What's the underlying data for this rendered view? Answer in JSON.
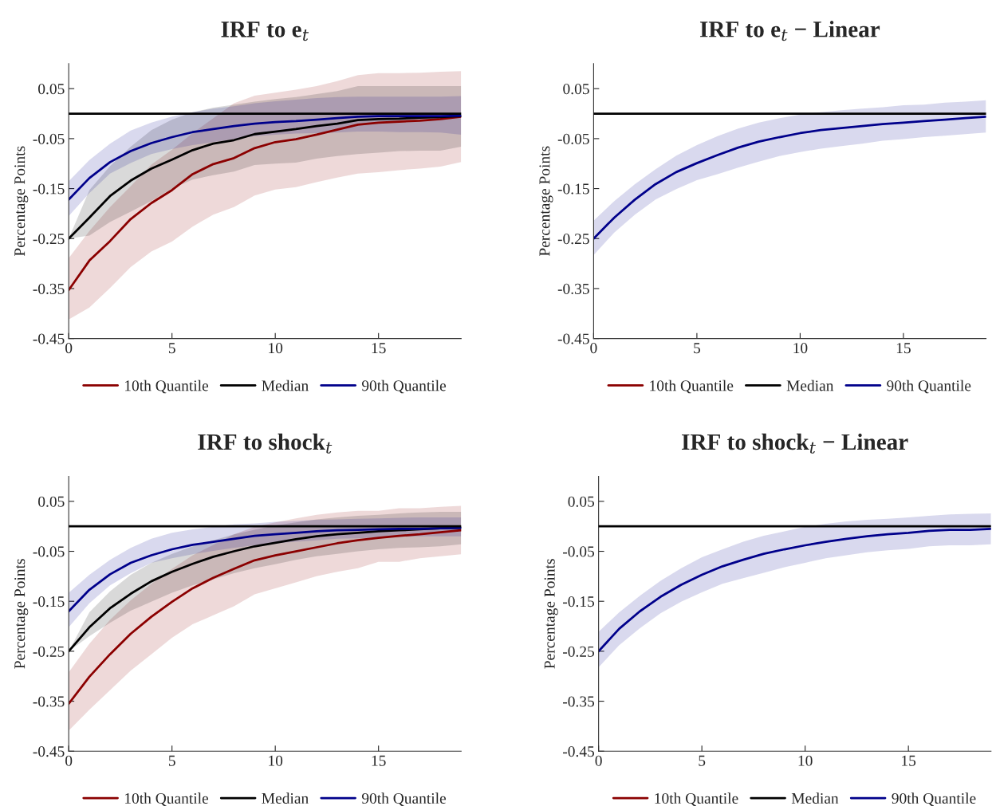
{
  "chart_data": [
    {
      "type": "line",
      "title": "IRF to e$_{t}$",
      "ylabel": "Percentage Points",
      "x": [
        0,
        1,
        2,
        3,
        4,
        5,
        6,
        7,
        8,
        9,
        10,
        11,
        12,
        13,
        14,
        15,
        16,
        17,
        18,
        19
      ],
      "xlim": [
        0,
        19
      ],
      "xticks": [
        0,
        5,
        10,
        15
      ],
      "ylim": [
        -0.45,
        0.1
      ],
      "yticks": [
        0.05,
        -0.05,
        -0.15,
        -0.25,
        -0.35,
        -0.45
      ],
      "legend": "bottom",
      "grid": false,
      "ref_lines": [
        {
          "axis": "y",
          "value": 0,
          "color": "#000000"
        }
      ],
      "series": [
        {
          "name": "10th Quantile",
          "color": "#8b0000",
          "values": [
            -0.353,
            -0.294,
            -0.255,
            -0.211,
            -0.179,
            -0.153,
            -0.121,
            -0.101,
            -0.089,
            -0.069,
            -0.057,
            -0.051,
            -0.042,
            -0.032,
            -0.022,
            -0.018,
            -0.016,
            -0.014,
            -0.011,
            -0.006
          ],
          "lower": [
            -0.412,
            -0.388,
            -0.349,
            -0.307,
            -0.276,
            -0.256,
            -0.226,
            -0.202,
            -0.187,
            -0.164,
            -0.152,
            -0.147,
            -0.137,
            -0.128,
            -0.12,
            -0.117,
            -0.113,
            -0.11,
            -0.106,
            -0.097
          ],
          "upper": [
            -0.289,
            -0.235,
            -0.187,
            -0.145,
            -0.102,
            -0.072,
            -0.039,
            -0.009,
            0.021,
            0.036,
            0.042,
            0.048,
            0.055,
            0.065,
            0.077,
            0.081,
            0.081,
            0.082,
            0.084,
            0.085
          ]
        },
        {
          "name": "Median",
          "color": "#000000",
          "values": [
            -0.25,
            -0.208,
            -0.165,
            -0.134,
            -0.11,
            -0.092,
            -0.073,
            -0.06,
            -0.053,
            -0.041,
            -0.036,
            -0.031,
            -0.025,
            -0.02,
            -0.013,
            -0.011,
            -0.01,
            -0.008,
            -0.007,
            -0.005
          ],
          "lower": [
            -0.25,
            -0.244,
            -0.217,
            -0.196,
            -0.175,
            -0.15,
            -0.132,
            -0.123,
            -0.116,
            -0.103,
            -0.1,
            -0.098,
            -0.09,
            -0.085,
            -0.081,
            -0.078,
            -0.075,
            -0.074,
            -0.074,
            -0.066
          ],
          "upper": [
            -0.25,
            -0.153,
            -0.105,
            -0.066,
            -0.033,
            -0.012,
            0.003,
            0.012,
            0.018,
            0.024,
            0.029,
            0.033,
            0.039,
            0.045,
            0.055,
            0.055,
            0.055,
            0.055,
            0.055,
            0.055
          ]
        },
        {
          "name": "90th Quantile",
          "color": "#00008b",
          "values": [
            -0.172,
            -0.129,
            -0.097,
            -0.075,
            -0.059,
            -0.047,
            -0.037,
            -0.031,
            -0.025,
            -0.02,
            -0.017,
            -0.015,
            -0.012,
            -0.009,
            -0.006,
            -0.005,
            -0.005,
            -0.005,
            -0.005,
            -0.004
          ],
          "lower": [
            -0.205,
            -0.159,
            -0.12,
            -0.099,
            -0.081,
            -0.071,
            -0.063,
            -0.057,
            -0.051,
            -0.045,
            -0.042,
            -0.04,
            -0.039,
            -0.038,
            -0.036,
            -0.036,
            -0.037,
            -0.037,
            -0.038,
            -0.042
          ],
          "upper": [
            -0.135,
            -0.093,
            -0.06,
            -0.034,
            -0.018,
            -0.006,
            0.003,
            0.01,
            0.015,
            0.021,
            0.025,
            0.028,
            0.031,
            0.033,
            0.034,
            0.034,
            0.034,
            0.034,
            0.034,
            0.035
          ]
        }
      ]
    },
    {
      "type": "line",
      "title": "IRF to e$_{t}$ − Linear",
      "ylabel": "Percentage Points",
      "x": [
        0,
        1,
        2,
        3,
        4,
        5,
        6,
        7,
        8,
        9,
        10,
        11,
        12,
        13,
        14,
        15,
        16,
        17,
        18,
        19
      ],
      "xlim": [
        0,
        19
      ],
      "xticks": [
        0,
        5,
        10,
        15
      ],
      "ylim": [
        -0.45,
        0.1
      ],
      "yticks": [
        0.05,
        -0.05,
        -0.15,
        -0.25,
        -0.35,
        -0.45
      ],
      "legend": "bottom",
      "grid": false,
      "ref_lines": [
        {
          "axis": "y",
          "value": 0,
          "color": "#000000"
        }
      ],
      "series": [
        {
          "name": "10th Quantile",
          "color": "#8b0000",
          "values": [
            null,
            null,
            null,
            null,
            null,
            null,
            null,
            null,
            null,
            null,
            null,
            null,
            null,
            null,
            null,
            null,
            null,
            null,
            null,
            null
          ]
        },
        {
          "name": "Median",
          "color": "#000000",
          "values": [
            null,
            null,
            null,
            null,
            null,
            null,
            null,
            null,
            null,
            null,
            null,
            null,
            null,
            null,
            null,
            null,
            null,
            null,
            null,
            null
          ]
        },
        {
          "name": "90th Quantile",
          "color": "#00008b",
          "values": [
            -0.25,
            -0.208,
            -0.172,
            -0.141,
            -0.117,
            -0.099,
            -0.083,
            -0.068,
            -0.056,
            -0.047,
            -0.039,
            -0.033,
            -0.029,
            -0.025,
            -0.021,
            -0.018,
            -0.015,
            -0.012,
            -0.009,
            -0.006
          ],
          "lower": [
            -0.283,
            -0.238,
            -0.202,
            -0.172,
            -0.151,
            -0.133,
            -0.121,
            -0.108,
            -0.096,
            -0.085,
            -0.077,
            -0.07,
            -0.065,
            -0.06,
            -0.054,
            -0.051,
            -0.047,
            -0.044,
            -0.041,
            -0.038
          ],
          "upper": [
            -0.214,
            -0.175,
            -0.141,
            -0.111,
            -0.084,
            -0.063,
            -0.045,
            -0.03,
            -0.018,
            -0.009,
            -0.002,
            0.003,
            0.007,
            0.01,
            0.013,
            0.017,
            0.018,
            0.022,
            0.024,
            0.027
          ]
        }
      ]
    },
    {
      "type": "line",
      "title": "IRF to shock$_{t}$",
      "ylabel": "Percentage Points",
      "x": [
        0,
        1,
        2,
        3,
        4,
        5,
        6,
        7,
        8,
        9,
        10,
        11,
        12,
        13,
        14,
        15,
        16,
        17,
        18,
        19
      ],
      "xlim": [
        0,
        19
      ],
      "xticks": [
        0,
        5,
        10,
        15
      ],
      "ylim": [
        -0.45,
        0.1
      ],
      "yticks": [
        0.05,
        -0.05,
        -0.15,
        -0.25,
        -0.35,
        -0.45
      ],
      "legend": "bottom",
      "grid": false,
      "ref_lines": [
        {
          "axis": "y",
          "value": 0,
          "color": "#000000"
        }
      ],
      "series": [
        {
          "name": "10th Quantile",
          "color": "#8b0000",
          "values": [
            -0.355,
            -0.301,
            -0.256,
            -0.215,
            -0.181,
            -0.151,
            -0.124,
            -0.103,
            -0.085,
            -0.068,
            -0.058,
            -0.05,
            -0.042,
            -0.034,
            -0.028,
            -0.023,
            -0.019,
            -0.016,
            -0.012,
            -0.008
          ],
          "lower": [
            -0.409,
            -0.367,
            -0.328,
            -0.289,
            -0.256,
            -0.223,
            -0.196,
            -0.178,
            -0.16,
            -0.136,
            -0.124,
            -0.112,
            -0.1,
            -0.091,
            -0.084,
            -0.071,
            -0.071,
            -0.064,
            -0.06,
            -0.056
          ],
          "upper": [
            -0.292,
            -0.235,
            -0.187,
            -0.148,
            -0.115,
            -0.085,
            -0.058,
            -0.037,
            -0.016,
            -0.001,
            0.008,
            0.016,
            0.023,
            0.028,
            0.031,
            0.031,
            0.036,
            0.036,
            0.039,
            0.041
          ]
        },
        {
          "name": "Median",
          "color": "#000000",
          "values": [
            -0.25,
            -0.202,
            -0.164,
            -0.135,
            -0.11,
            -0.091,
            -0.075,
            -0.061,
            -0.05,
            -0.04,
            -0.033,
            -0.026,
            -0.02,
            -0.016,
            -0.013,
            -0.01,
            -0.008,
            -0.006,
            -0.004,
            -0.003
          ],
          "lower": [
            -0.25,
            -0.22,
            -0.193,
            -0.169,
            -0.151,
            -0.133,
            -0.118,
            -0.106,
            -0.094,
            -0.084,
            -0.076,
            -0.067,
            -0.06,
            -0.055,
            -0.05,
            -0.046,
            -0.043,
            -0.042,
            -0.04,
            -0.036
          ],
          "upper": [
            -0.25,
            -0.172,
            -0.13,
            -0.097,
            -0.073,
            -0.055,
            -0.04,
            -0.028,
            -0.016,
            -0.007,
            0.002,
            0.008,
            0.014,
            0.018,
            0.021,
            0.023,
            0.026,
            0.028,
            0.029,
            0.029
          ]
        },
        {
          "name": "90th Quantile",
          "color": "#00008b",
          "values": [
            -0.17,
            -0.127,
            -0.096,
            -0.073,
            -0.058,
            -0.046,
            -0.037,
            -0.031,
            -0.025,
            -0.019,
            -0.016,
            -0.013,
            -0.01,
            -0.008,
            -0.007,
            -0.006,
            -0.005,
            -0.005,
            -0.004,
            -0.003
          ],
          "lower": [
            -0.202,
            -0.154,
            -0.118,
            -0.094,
            -0.073,
            -0.064,
            -0.056,
            -0.049,
            -0.043,
            -0.038,
            -0.034,
            -0.031,
            -0.028,
            -0.025,
            -0.024,
            -0.022,
            -0.021,
            -0.02,
            -0.02,
            -0.02
          ],
          "upper": [
            -0.133,
            -0.097,
            -0.067,
            -0.043,
            -0.025,
            -0.013,
            -0.006,
            -0.001,
            0.004,
            0.006,
            0.009,
            0.011,
            0.013,
            0.014,
            0.015,
            0.016,
            0.017,
            0.018,
            0.018,
            0.018
          ]
        }
      ]
    },
    {
      "type": "line",
      "title": "IRF to shock$_{t}$ − Linear",
      "ylabel": "Percentage Points",
      "x": [
        0,
        1,
        2,
        3,
        4,
        5,
        6,
        7,
        8,
        9,
        10,
        11,
        12,
        13,
        14,
        15,
        16,
        17,
        18,
        19
      ],
      "xlim": [
        0,
        19
      ],
      "xticks": [
        0,
        5,
        10,
        15
      ],
      "ylim": [
        -0.45,
        0.1
      ],
      "yticks": [
        0.05,
        -0.05,
        -0.15,
        -0.25,
        -0.35,
        -0.45
      ],
      "legend": "bottom",
      "grid": false,
      "ref_lines": [
        {
          "axis": "y",
          "value": 0,
          "color": "#000000"
        }
      ],
      "series": [
        {
          "name": "10th Quantile",
          "color": "#8b0000",
          "values": [
            null,
            null,
            null,
            null,
            null,
            null,
            null,
            null,
            null,
            null,
            null,
            null,
            null,
            null,
            null,
            null,
            null,
            null,
            null,
            null
          ]
        },
        {
          "name": "Median",
          "color": "#000000",
          "values": [
            null,
            null,
            null,
            null,
            null,
            null,
            null,
            null,
            null,
            null,
            null,
            null,
            null,
            null,
            null,
            null,
            null,
            null,
            null,
            null
          ]
        },
        {
          "name": "90th Quantile",
          "color": "#00008b",
          "values": [
            -0.25,
            -0.205,
            -0.17,
            -0.141,
            -0.117,
            -0.097,
            -0.08,
            -0.067,
            -0.055,
            -0.046,
            -0.038,
            -0.031,
            -0.025,
            -0.02,
            -0.016,
            -0.013,
            -0.009,
            -0.007,
            -0.007,
            -0.005
          ],
          "lower": [
            -0.282,
            -0.238,
            -0.204,
            -0.174,
            -0.151,
            -0.132,
            -0.115,
            -0.104,
            -0.093,
            -0.082,
            -0.073,
            -0.064,
            -0.058,
            -0.052,
            -0.048,
            -0.045,
            -0.04,
            -0.038,
            -0.038,
            -0.036
          ],
          "upper": [
            -0.211,
            -0.172,
            -0.139,
            -0.109,
            -0.084,
            -0.062,
            -0.046,
            -0.031,
            -0.019,
            -0.01,
            -0.001,
            0.005,
            0.01,
            0.013,
            0.015,
            0.018,
            0.021,
            0.024,
            0.025,
            0.026
          ]
        }
      ]
    }
  ]
}
